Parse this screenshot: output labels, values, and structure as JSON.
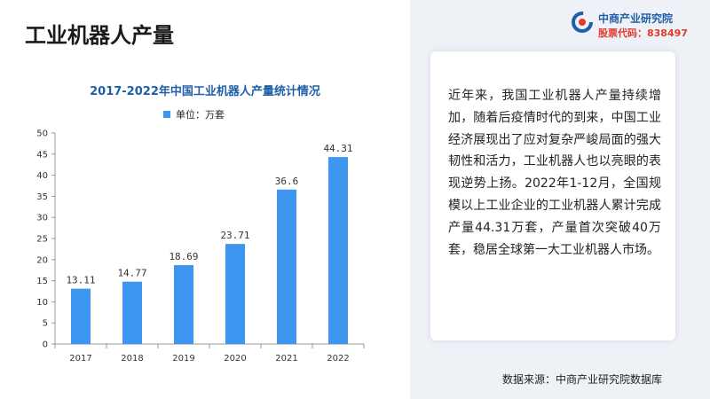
{
  "page": {
    "title": "工业机器人产量"
  },
  "logo": {
    "name": "中商产业研究院",
    "stock_code": "股票代码：838497",
    "icon": "logo-mark-icon",
    "colors": {
      "primary": "#1f5fa8",
      "accent": "#e23a2e"
    }
  },
  "chart_data": {
    "type": "bar",
    "title": "2017-2022年中国工业机器人产量统计情况",
    "legend": "单位：万套",
    "legend_position": "top",
    "categories": [
      "2017",
      "2018",
      "2019",
      "2020",
      "2021",
      "2022"
    ],
    "values": [
      13.11,
      14.77,
      18.69,
      23.71,
      36.6,
      44.31
    ],
    "value_labels": [
      "13.11",
      "14.77",
      "18.69",
      "23.71",
      "36.6",
      "44.31"
    ],
    "ylim": [
      0,
      50
    ],
    "yticks": [
      0,
      5,
      10,
      15,
      20,
      25,
      30,
      35,
      40,
      45,
      50
    ],
    "grid": false,
    "bar_color": "#3e96f0"
  },
  "description": {
    "text": "近年来，我国工业机器人产量持续增加，随着后疫情时代的到来，中国工业经济展现出了应对复杂严峻局面的强大韧性和活力，工业机器人也以亮眼的表现逆势上扬。2022年1-12月，全国规模以上工业企业的工业机器人累计完成产量44.31万套，产量首次突破40万套，稳居全球第一大工业机器人市场。"
  },
  "source": {
    "text": "数据来源：中商产业研究院数据库"
  }
}
